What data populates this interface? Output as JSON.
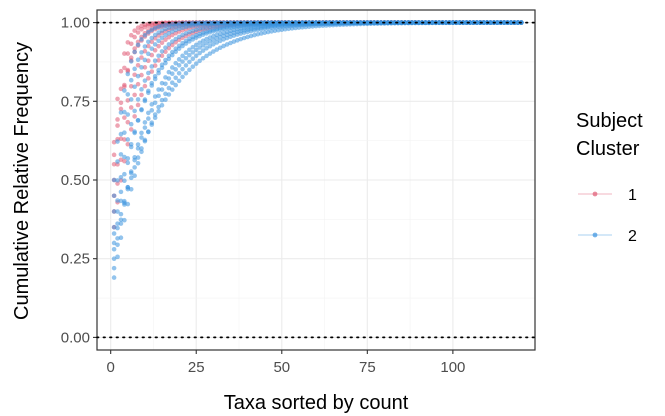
{
  "chart_data": {
    "type": "scatter",
    "xlabel": "Taxa sorted by count",
    "ylabel": "Cumulative Relative Frequency",
    "xlim": [
      -4,
      124
    ],
    "ylim": [
      -0.04,
      1.04
    ],
    "x_ticks": [
      0,
      25,
      50,
      75,
      100
    ],
    "x_tick_labels": [
      "0",
      "25",
      "50",
      "75",
      "100"
    ],
    "y_ticks": [
      0.0,
      0.25,
      0.5,
      0.75,
      1.0
    ],
    "y_tick_labels": [
      "0.00",
      "0.25",
      "0.50",
      "0.75",
      "1.00"
    ],
    "grid": true,
    "reference_lines": [
      0.0,
      1.0
    ],
    "legend": {
      "title_lines": [
        "Subject",
        "Cluster"
      ],
      "position": "right",
      "entries": [
        {
          "label": "1",
          "color": "#e05a74"
        },
        {
          "label": "2",
          "color": "#3a93df"
        }
      ]
    },
    "x_range": [
      1,
      120
    ],
    "series": [
      {
        "name": "1",
        "color": "#e05a74",
        "curves": [
          {
            "start": 0.62,
            "rate": 0.45
          },
          {
            "start": 0.55,
            "rate": 0.38
          },
          {
            "start": 0.5,
            "rate": 0.3
          },
          {
            "start": 0.58,
            "rate": 0.25
          },
          {
            "start": 0.45,
            "rate": 0.2
          },
          {
            "start": 0.4,
            "rate": 0.16
          },
          {
            "start": 0.35,
            "rate": 0.13
          }
        ]
      },
      {
        "name": "2",
        "color": "#3a93df",
        "curves": [
          {
            "start": 0.19,
            "rate": 0.085
          },
          {
            "start": 0.22,
            "rate": 0.1
          },
          {
            "start": 0.28,
            "rate": 0.12
          },
          {
            "start": 0.3,
            "rate": 0.07
          },
          {
            "start": 0.35,
            "rate": 0.14
          },
          {
            "start": 0.4,
            "rate": 0.18
          },
          {
            "start": 0.25,
            "rate": 0.09
          },
          {
            "start": 0.45,
            "rate": 0.22
          },
          {
            "start": 0.33,
            "rate": 0.11
          },
          {
            "start": 0.5,
            "rate": 0.28
          }
        ]
      }
    ]
  }
}
